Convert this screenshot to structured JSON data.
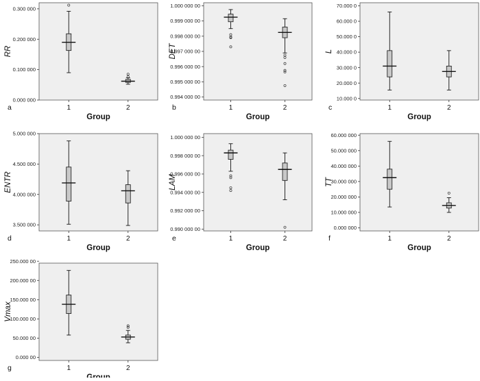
{
  "colors": {
    "plot_bg": "#efefef",
    "box_fill": "#c8c8c8",
    "ink": "#111111"
  },
  "chart_data": [
    {
      "type": "box",
      "panel_label": "a",
      "ylabel": "RR",
      "xlabel": "Group",
      "ylim": [
        0.0,
        0.32
      ],
      "yticks": [
        0.0,
        0.1,
        0.2,
        0.3
      ],
      "yticklabels": [
        "0.000 000",
        "0.100 000",
        "0.200 000",
        "0.300 000"
      ],
      "categories": [
        "1",
        "2"
      ],
      "boxes": [
        {
          "group": "1",
          "min": 0.09,
          "q1": 0.163,
          "median": 0.19,
          "q3": 0.218,
          "max": 0.292,
          "outliers": [
            0.312
          ]
        },
        {
          "group": "2",
          "min": 0.052,
          "q1": 0.058,
          "median": 0.062,
          "q3": 0.068,
          "max": 0.073,
          "outliers": [
            0.085,
            0.077
          ]
        }
      ]
    },
    {
      "type": "box",
      "panel_label": "b",
      "ylabel": "DET",
      "xlabel": "Group",
      "ylim": [
        0.9938,
        1.0002
      ],
      "yticks": [
        0.994,
        0.995,
        0.996,
        0.997,
        0.998,
        0.999,
        1.0
      ],
      "yticklabels": [
        "0.994 000 00",
        "0.995 000 00",
        "0.996 000 00",
        "0.997 000 00",
        "0.998 000 00",
        "0.999 000 00",
        "1.000 000 00"
      ],
      "categories": [
        "1",
        "2"
      ],
      "boxes": [
        {
          "group": "1",
          "min": 0.9985,
          "q1": 0.99895,
          "median": 0.99925,
          "q3": 0.99945,
          "max": 0.99975,
          "outliers": [
            0.9981,
            0.99795,
            0.9979,
            0.9973
          ]
        },
        {
          "group": "2",
          "min": 0.9969,
          "q1": 0.9979,
          "median": 0.99825,
          "q3": 0.9986,
          "max": 0.99915,
          "outliers": [
            0.99675,
            0.9966,
            0.9962,
            0.99575,
            0.99565,
            0.99475
          ]
        }
      ]
    },
    {
      "type": "box",
      "panel_label": "c",
      "ylabel": "L",
      "xlabel": "Group",
      "ylim": [
        9,
        72
      ],
      "yticks": [
        10,
        20,
        30,
        40,
        50,
        60,
        70
      ],
      "yticklabels": [
        "10.000 0",
        "20.000 0",
        "30.000 0",
        "40.000 0",
        "50.000 0",
        "60.000 0",
        "70.000 0"
      ],
      "categories": [
        "1",
        "2"
      ],
      "boxes": [
        {
          "group": "1",
          "min": 15.5,
          "q1": 24,
          "median": 31,
          "q3": 41,
          "max": 66,
          "outliers": []
        },
        {
          "group": "2",
          "min": 15.5,
          "q1": 24,
          "median": 27.5,
          "q3": 31,
          "max": 41,
          "outliers": []
        }
      ]
    },
    {
      "type": "box",
      "panel_label": "d",
      "ylabel": "ENTR",
      "xlabel": "Group",
      "ylim": [
        3.4,
        5.0
      ],
      "yticks": [
        3.5,
        4.0,
        4.5,
        5.0
      ],
      "yticklabels": [
        "3.500 000",
        "4.000 000",
        "4.500 000",
        "5.000 000"
      ],
      "categories": [
        "1",
        "2"
      ],
      "boxes": [
        {
          "group": "1",
          "min": 3.51,
          "q1": 3.89,
          "median": 4.19,
          "q3": 4.45,
          "max": 4.88,
          "outliers": []
        },
        {
          "group": "2",
          "min": 3.49,
          "q1": 3.86,
          "median": 4.06,
          "q3": 4.16,
          "max": 4.39,
          "outliers": []
        }
      ]
    },
    {
      "type": "box",
      "panel_label": "e",
      "ylabel": "LAM",
      "xlabel": "Group",
      "ylim": [
        0.9898,
        1.0004
      ],
      "yticks": [
        0.99,
        0.992,
        0.994,
        0.996,
        0.998,
        1.0
      ],
      "yticklabels": [
        "0.990 000 00",
        "0.992 000 00",
        "0.994 000 00",
        "0.996 000 00",
        "0.998 000 00",
        "1.000 000 00"
      ],
      "categories": [
        "1",
        "2"
      ],
      "boxes": [
        {
          "group": "1",
          "min": 0.9963,
          "q1": 0.9976,
          "median": 0.9983,
          "q3": 0.9986,
          "max": 0.9993,
          "outliers": [
            0.9958,
            0.9956,
            0.9945,
            0.9942
          ]
        },
        {
          "group": "2",
          "min": 0.9932,
          "q1": 0.9953,
          "median": 0.9965,
          "q3": 0.9972,
          "max": 0.9983,
          "outliers": [
            0.9902
          ]
        }
      ]
    },
    {
      "type": "box",
      "panel_label": "f",
      "ylabel": "TT",
      "xlabel": "Group",
      "ylim": [
        -2,
        61
      ],
      "yticks": [
        0,
        10,
        20,
        30,
        40,
        50,
        60
      ],
      "yticklabels": [
        "0.000 000",
        "10.000 000",
        "20.000 000",
        "30.000 000",
        "40.000 000",
        "50.000 000",
        "60.000 000"
      ],
      "categories": [
        "1",
        "2"
      ],
      "boxes": [
        {
          "group": "1",
          "min": 13.5,
          "q1": 25,
          "median": 32.5,
          "q3": 38,
          "max": 56,
          "outliers": []
        },
        {
          "group": "2",
          "min": 10,
          "q1": 12.8,
          "median": 14.5,
          "q3": 16.2,
          "max": 19.5,
          "outliers": [
            22.5
          ]
        }
      ]
    },
    {
      "type": "box",
      "panel_label": "g",
      "ylabel": "Vmax",
      "xlabel": "Group",
      "ylim": [
        -8,
        245
      ],
      "yticks": [
        0,
        50,
        100,
        150,
        200,
        250
      ],
      "yticklabels": [
        "0.000 00",
        "50.000 00",
        "100.000 00",
        "150.000 00",
        "200.000 00",
        "250.000 00"
      ],
      "categories": [
        "1",
        "2"
      ],
      "boxes": [
        {
          "group": "1",
          "min": 58,
          "q1": 114,
          "median": 138,
          "q3": 162,
          "max": 226,
          "outliers": []
        },
        {
          "group": "2",
          "min": 38,
          "q1": 47,
          "median": 53,
          "q3": 58,
          "max": 70,
          "outliers": [
            82,
            78
          ]
        }
      ]
    }
  ]
}
